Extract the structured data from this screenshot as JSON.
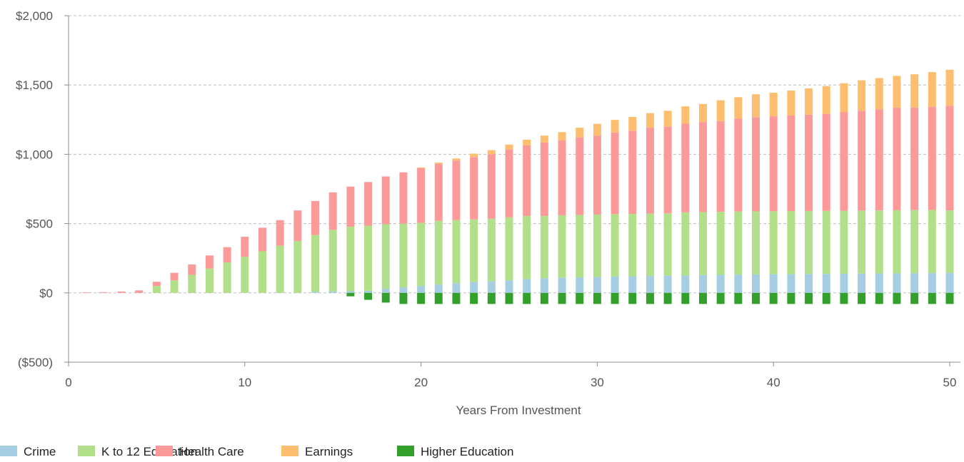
{
  "chart_data": {
    "type": "bar",
    "stacked": true,
    "xlabel": "Years From Investment",
    "ylabel": "",
    "xlim": [
      0,
      50
    ],
    "ylim": [
      -500,
      2000
    ],
    "x_ticks": [
      0,
      10,
      20,
      30,
      40,
      50
    ],
    "y_ticks": [
      -500,
      0,
      500,
      1000,
      1500,
      2000
    ],
    "y_tick_labels": [
      "($500)",
      "$0",
      "$500",
      "$1,000",
      "$1,500",
      "$2,000"
    ],
    "grid": "horizontal-dashed",
    "legend_position": "bottom-left",
    "x": [
      1,
      2,
      3,
      4,
      5,
      6,
      7,
      8,
      9,
      10,
      11,
      12,
      13,
      14,
      15,
      16,
      17,
      18,
      19,
      20,
      21,
      22,
      23,
      24,
      25,
      26,
      27,
      28,
      29,
      30,
      31,
      32,
      33,
      34,
      35,
      36,
      37,
      38,
      39,
      40,
      41,
      42,
      43,
      44,
      45,
      46,
      47,
      48,
      49,
      50
    ],
    "series": [
      {
        "name": "Crime",
        "color": "#a6cee3",
        "values": [
          0,
          0,
          0,
          0,
          0,
          0,
          0,
          0,
          0,
          0,
          0,
          0,
          0,
          8,
          10,
          12,
          15,
          30,
          40,
          50,
          60,
          70,
          80,
          85,
          90,
          100,
          105,
          110,
          112,
          115,
          118,
          120,
          122,
          124,
          126,
          128,
          130,
          132,
          133,
          134,
          135,
          136,
          137,
          138,
          139,
          140,
          141,
          142,
          143,
          145
        ]
      },
      {
        "name": "K to 12 Education",
        "color": "#b2df8a",
        "values": [
          0,
          0,
          0,
          0,
          50,
          90,
          130,
          175,
          220,
          260,
          300,
          340,
          375,
          410,
          445,
          465,
          470,
          465,
          460,
          455,
          460,
          455,
          450,
          450,
          455,
          455,
          450,
          450,
          450,
          450,
          450,
          450,
          450,
          450,
          455,
          455,
          455,
          455,
          455,
          455,
          455,
          455,
          455,
          455,
          455,
          455,
          455,
          455,
          455,
          450
        ]
      },
      {
        "name": "Health Care",
        "color": "#fb9a99",
        "values": [
          3,
          5,
          10,
          18,
          30,
          55,
          75,
          95,
          110,
          145,
          170,
          185,
          220,
          245,
          270,
          290,
          315,
          345,
          370,
          395,
          410,
          430,
          450,
          465,
          490,
          510,
          530,
          540,
          560,
          570,
          590,
          600,
          620,
          625,
          640,
          650,
          655,
          670,
          680,
          685,
          690,
          695,
          700,
          710,
          720,
          730,
          740,
          740,
          745,
          755
        ]
      },
      {
        "name": "Earnings",
        "color": "#fdbf6f",
        "values": [
          0,
          0,
          0,
          0,
          0,
          0,
          0,
          0,
          0,
          0,
          0,
          0,
          0,
          0,
          0,
          0,
          0,
          0,
          0,
          5,
          10,
          15,
          25,
          30,
          35,
          40,
          50,
          60,
          70,
          85,
          90,
          100,
          105,
          115,
          125,
          130,
          150,
          155,
          165,
          170,
          180,
          190,
          200,
          210,
          220,
          225,
          230,
          240,
          250,
          260
        ]
      },
      {
        "name": "Higher Education",
        "color": "#33a02c",
        "values": [
          0,
          0,
          0,
          0,
          0,
          0,
          0,
          0,
          0,
          0,
          0,
          0,
          0,
          0,
          0,
          -25,
          -50,
          -70,
          -80,
          -80,
          -80,
          -80,
          -80,
          -80,
          -80,
          -80,
          -80,
          -80,
          -80,
          -80,
          -80,
          -80,
          -80,
          -80,
          -80,
          -80,
          -80,
          -80,
          -80,
          -80,
          -80,
          -80,
          -80,
          -80,
          -80,
          -80,
          -80,
          -80,
          -80,
          -80
        ]
      }
    ]
  }
}
